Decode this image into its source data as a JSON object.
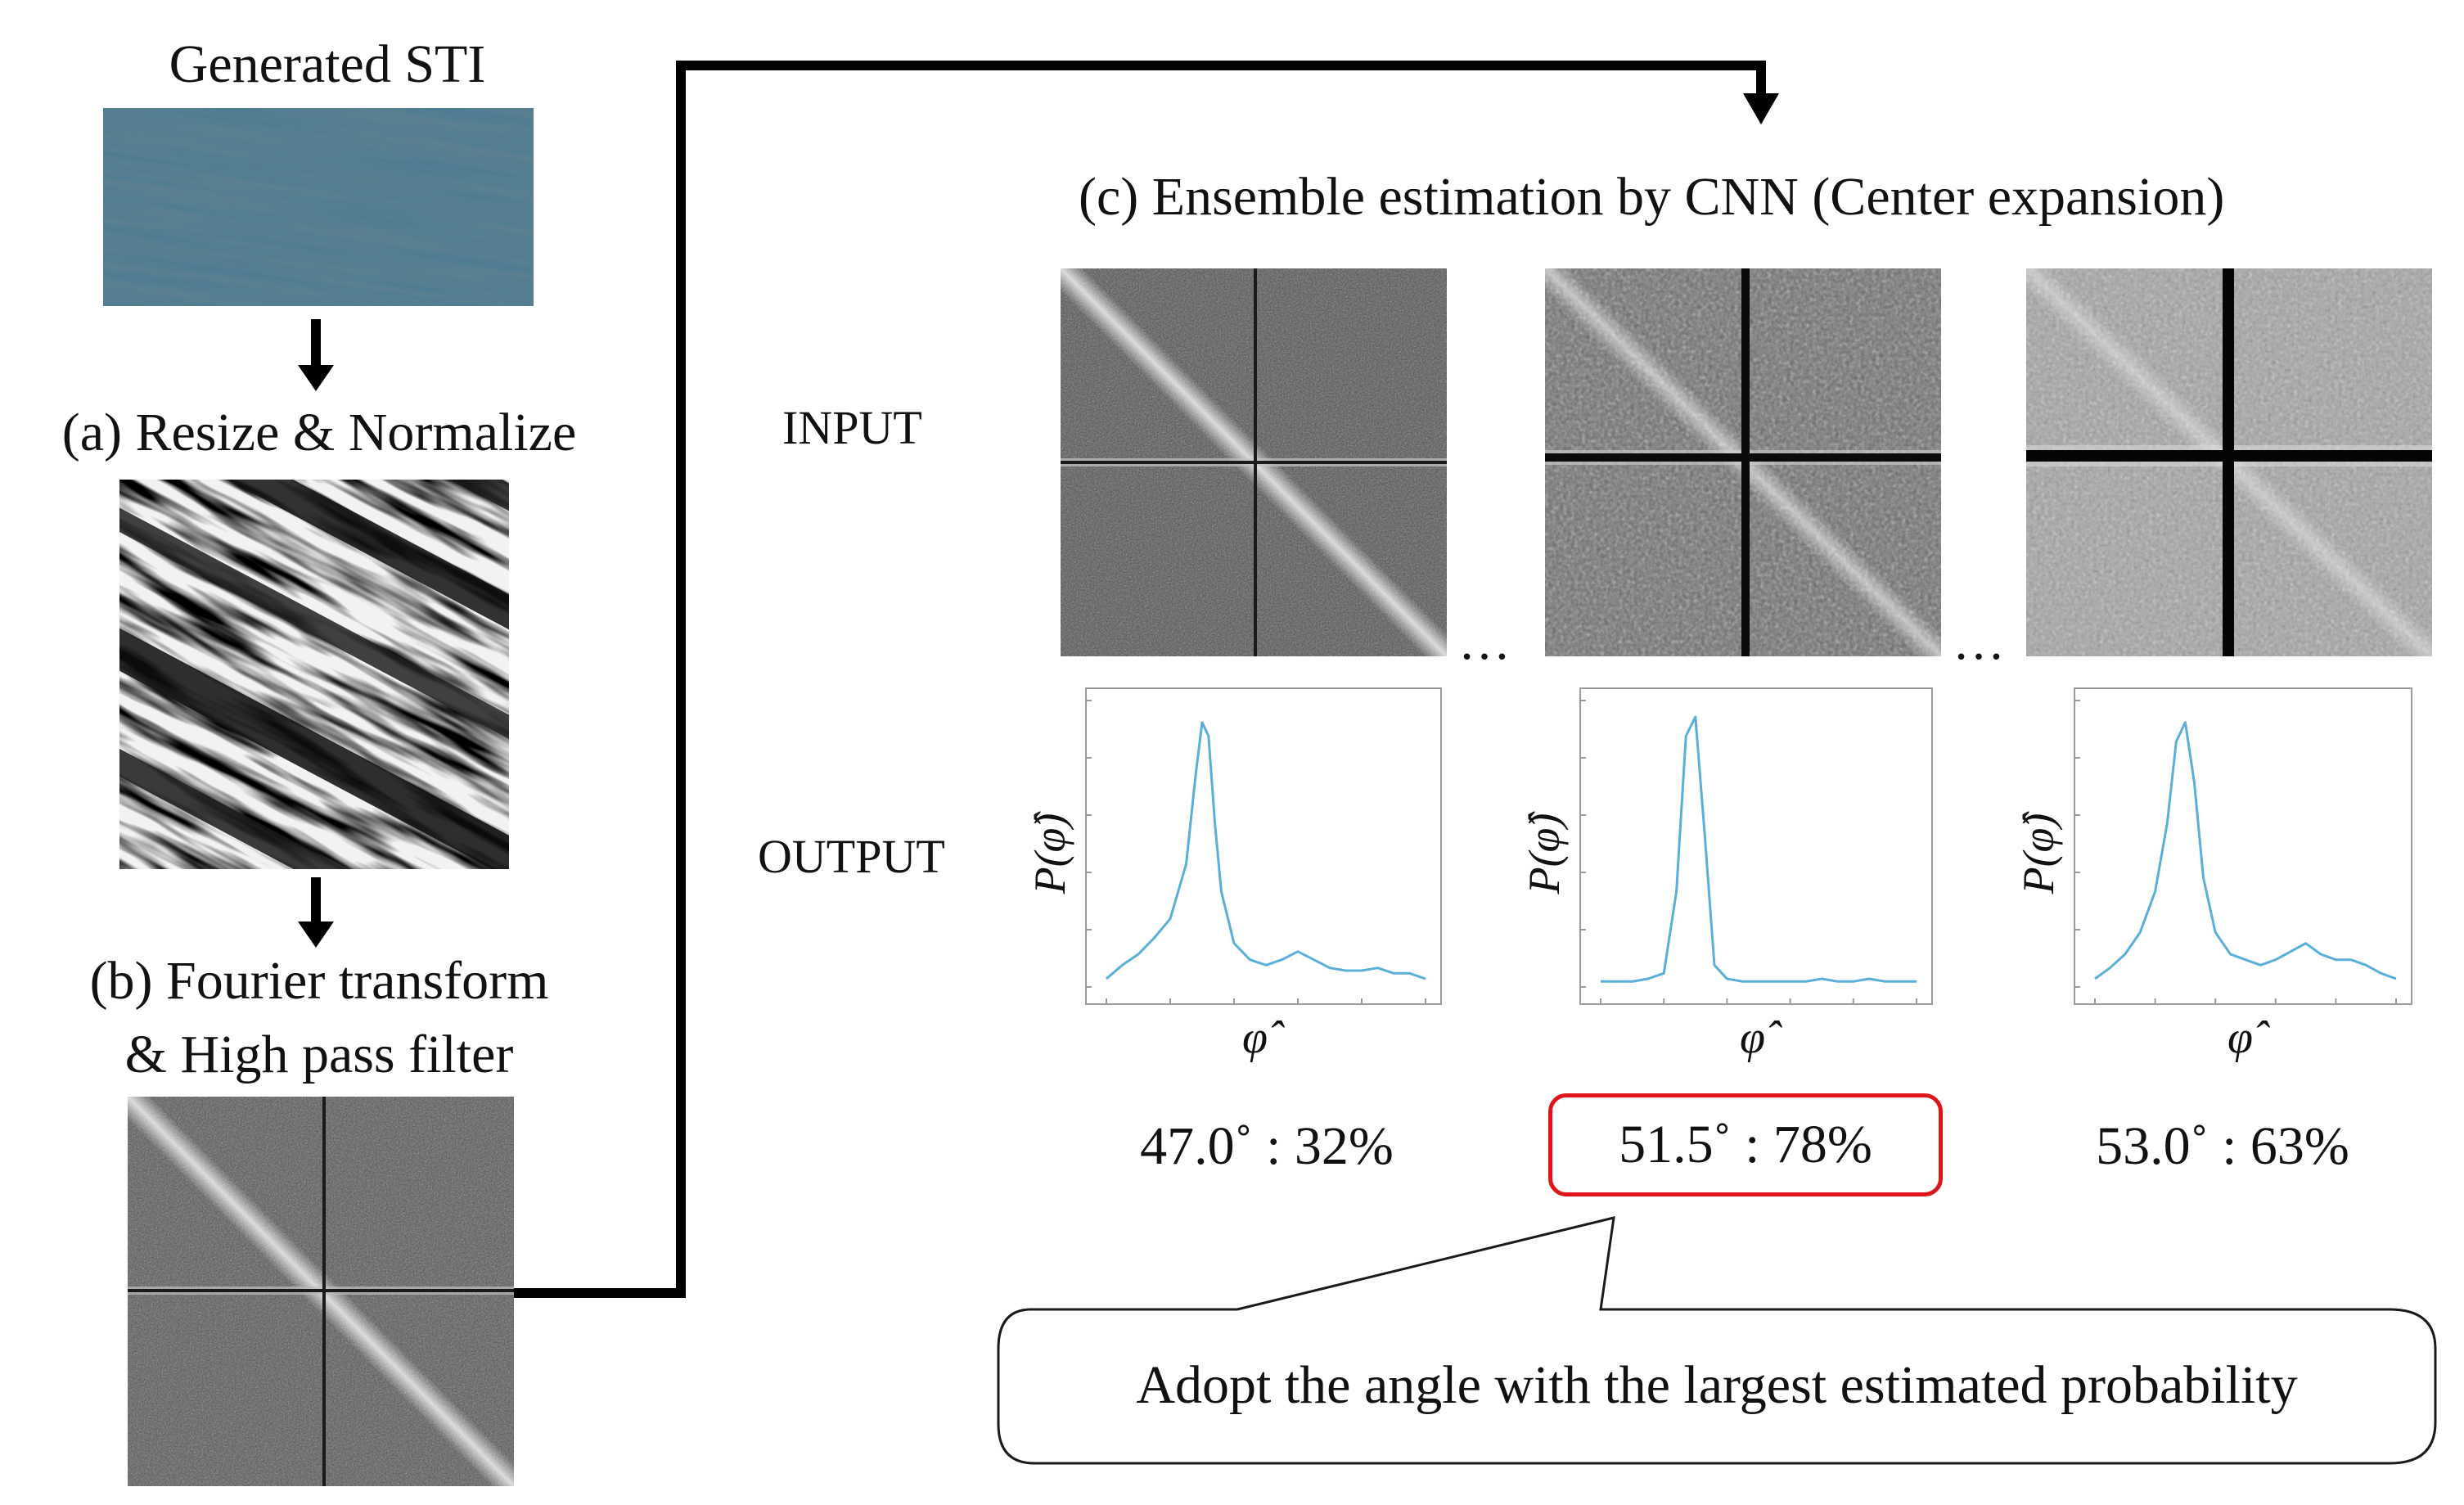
{
  "pipeline": {
    "generated_title": "Generated STI",
    "step_a_title": "(a) Resize & Normalize",
    "step_b_title_line1": "(b) Fourier transform",
    "step_b_title_line2": "& High pass filter",
    "step_c_title": "(c) Ensemble estimation by CNN (Center expansion)"
  },
  "rows": {
    "input_label": "INPUT",
    "output_label": "OUTPUT",
    "ellipsis": "…"
  },
  "plots": {
    "ylabel": "P(φ̂)",
    "xlabel": "φ̂"
  },
  "chart_data": [
    {
      "type": "line",
      "title": "",
      "xlabel": "φ̂",
      "ylabel": "P(φ̂)",
      "x": [
        0,
        5,
        10,
        15,
        20,
        25,
        28,
        30,
        32,
        34,
        36,
        40,
        45,
        50,
        55,
        60,
        65,
        70,
        75,
        80,
        85,
        90,
        95,
        100
      ],
      "series": [
        {
          "name": "47.0°",
          "values": [
            0.03,
            0.08,
            0.12,
            0.18,
            0.25,
            0.45,
            0.78,
            0.97,
            0.92,
            0.6,
            0.35,
            0.16,
            0.1,
            0.08,
            0.1,
            0.13,
            0.1,
            0.07,
            0.06,
            0.06,
            0.07,
            0.05,
            0.05,
            0.03
          ]
        }
      ],
      "ylim": [
        0,
        1.05
      ]
    },
    {
      "type": "line",
      "title": "",
      "xlabel": "φ̂",
      "ylabel": "P(φ̂)",
      "x": [
        0,
        5,
        10,
        15,
        20,
        24,
        27,
        30,
        33,
        36,
        40,
        45,
        50,
        55,
        60,
        65,
        70,
        75,
        80,
        85,
        90,
        95,
        100
      ],
      "series": [
        {
          "name": "51.5°",
          "values": [
            0.02,
            0.02,
            0.02,
            0.03,
            0.05,
            0.35,
            0.92,
            0.99,
            0.55,
            0.08,
            0.03,
            0.02,
            0.02,
            0.02,
            0.02,
            0.02,
            0.03,
            0.02,
            0.02,
            0.03,
            0.02,
            0.02,
            0.02
          ]
        }
      ],
      "ylim": [
        0,
        1.05
      ]
    },
    {
      "type": "line",
      "title": "",
      "xlabel": "φ̂",
      "ylabel": "P(φ̂)",
      "x": [
        0,
        5,
        10,
        15,
        20,
        24,
        27,
        30,
        33,
        36,
        40,
        45,
        50,
        55,
        60,
        65,
        70,
        75,
        80,
        85,
        90,
        95,
        100
      ],
      "series": [
        {
          "name": "53.0°",
          "values": [
            0.03,
            0.07,
            0.12,
            0.2,
            0.35,
            0.6,
            0.9,
            0.97,
            0.75,
            0.4,
            0.2,
            0.12,
            0.1,
            0.08,
            0.1,
            0.13,
            0.16,
            0.12,
            0.1,
            0.1,
            0.08,
            0.05,
            0.03
          ]
        }
      ],
      "ylim": [
        0,
        1.05
      ]
    }
  ],
  "results": [
    {
      "text": "47.0˚ : 32%",
      "highlighted": false
    },
    {
      "text": "51.5˚ : 78%",
      "highlighted": true
    },
    {
      "text": "53.0˚ : 63%",
      "highlighted": false
    }
  ],
  "callout": {
    "text": "Adopt the angle with the largest estimated probability"
  },
  "colors": {
    "sti_blue": "#4a7489",
    "curve": "#5aafd9",
    "highlight": "#e0151c",
    "arrow": "#000000"
  }
}
